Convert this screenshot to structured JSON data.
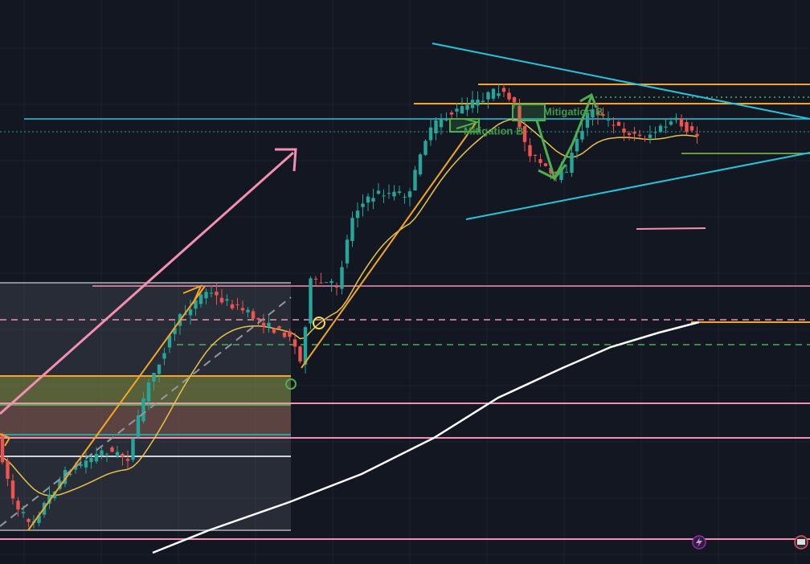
{
  "annotations": [
    {
      "label": "Mitigation B"
    },
    {
      "label": "Mitigation B"
    }
  ]
}
